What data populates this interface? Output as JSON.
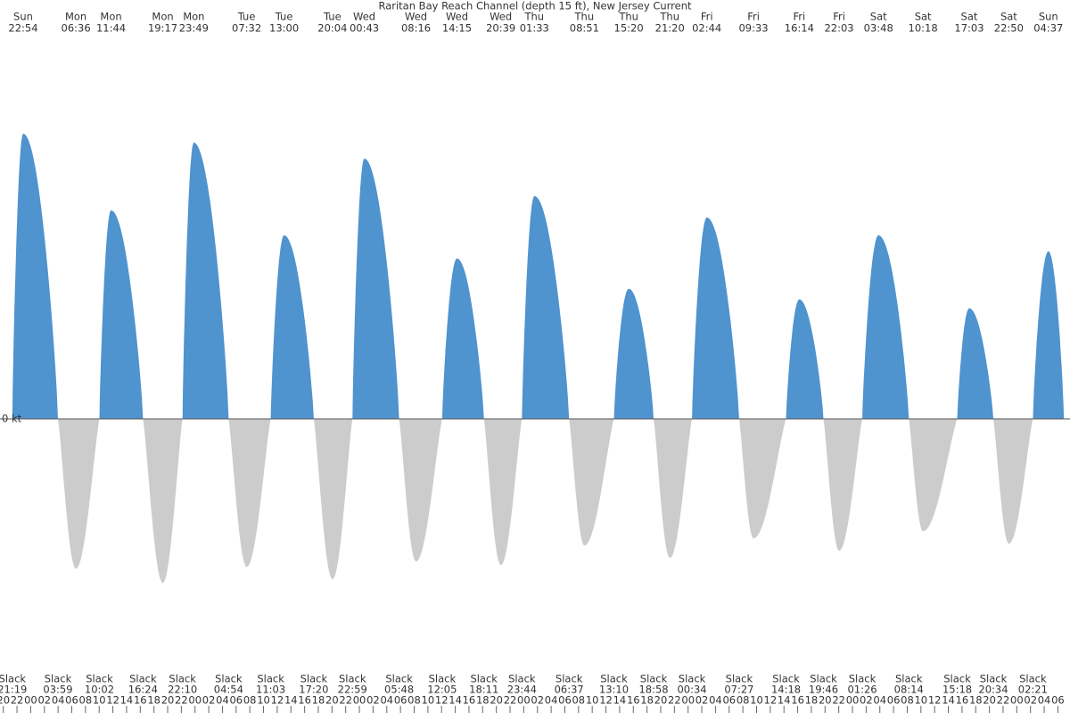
{
  "chart_data": {
    "type": "tidal-current",
    "title": "Raritan Bay Reach Channel (depth 15 ft), New Jersey Current",
    "ylim": [
      -1.4,
      2.2
    ],
    "yticks": [
      {
        "value": 0,
        "label": "0 kt"
      }
    ],
    "flood_color": "#4f93cf",
    "ebb_color": "#cccccc",
    "maxima": [
      {
        "day": "Sun",
        "time": "22:54",
        "value": 1.6
      },
      {
        "day": "Mon",
        "time": "06:36",
        "value": -0.84
      },
      {
        "day": "Mon",
        "time": "11:44",
        "value": 1.17
      },
      {
        "day": "Mon",
        "time": "19:17",
        "value": -0.92
      },
      {
        "day": "Mon",
        "time": "23:49",
        "value": 1.55
      },
      {
        "day": "Tue",
        "time": "07:32",
        "value": -0.83
      },
      {
        "day": "Tue",
        "time": "13:00",
        "value": 1.03
      },
      {
        "day": "Tue",
        "time": "20:04",
        "value": -0.9
      },
      {
        "day": "Wed",
        "time": "00:43",
        "value": 1.46
      },
      {
        "day": "Wed",
        "time": "08:16",
        "value": -0.8
      },
      {
        "day": "Wed",
        "time": "14:15",
        "value": 0.9
      },
      {
        "day": "Wed",
        "time": "20:39",
        "value": -0.82
      },
      {
        "day": "Thu",
        "time": "01:33",
        "value": 1.25
      },
      {
        "day": "Thu",
        "time": "08:51",
        "value": -0.71
      },
      {
        "day": "Thu",
        "time": "15:20",
        "value": 0.73
      },
      {
        "day": "Thu",
        "time": "21:20",
        "value": -0.78
      },
      {
        "day": "Fri",
        "time": "02:44",
        "value": 1.13
      },
      {
        "day": "Fri",
        "time": "09:33",
        "value": -0.67
      },
      {
        "day": "Fri",
        "time": "16:14",
        "value": 0.67
      },
      {
        "day": "Fri",
        "time": "22:03",
        "value": -0.74
      },
      {
        "day": "Sat",
        "time": "03:48",
        "value": 1.03
      },
      {
        "day": "Sat",
        "time": "10:18",
        "value": -0.63
      },
      {
        "day": "Sat",
        "time": "17:03",
        "value": 0.62
      },
      {
        "day": "Sat",
        "time": "22:50",
        "value": -0.7
      },
      {
        "day": "Sun",
        "time": "04:37",
        "value": 0.94
      }
    ],
    "slack_label": "Slack",
    "slacks": [
      "21:19",
      "03:59",
      "10:02",
      "16:24",
      "22:10",
      "04:54",
      "11:03",
      "17:20",
      "22:59",
      "05:48",
      "12:05",
      "18:11",
      "23:44",
      "06:37",
      "13:10",
      "18:58",
      "00:34",
      "07:27",
      "14:18",
      "19:46",
      "01:26",
      "08:14",
      "15:18",
      "20:34",
      "02:21"
    ],
    "hour_ticks": [
      "20",
      "22",
      "00",
      "02",
      "04",
      "06",
      "08",
      "10",
      "12",
      "14",
      "16",
      "18",
      "20",
      "22",
      "00",
      "02",
      "04",
      "06",
      "08",
      "10",
      "12",
      "14",
      "16",
      "18",
      "20",
      "22",
      "00",
      "02",
      "04",
      "06",
      "08",
      "10",
      "12",
      "14",
      "16",
      "18",
      "20",
      "22",
      "00",
      "02",
      "04",
      "06",
      "08",
      "10",
      "12",
      "14",
      "16",
      "18",
      "20",
      "22",
      "00",
      "02",
      "04",
      "06",
      "08",
      "10",
      "12",
      "14",
      "16",
      "18",
      "20",
      "22",
      "00",
      "02",
      "04",
      "06",
      "08",
      "10",
      "12",
      "14",
      "16",
      "18",
      "20",
      "22",
      "00",
      "02",
      "04",
      "06"
    ]
  }
}
